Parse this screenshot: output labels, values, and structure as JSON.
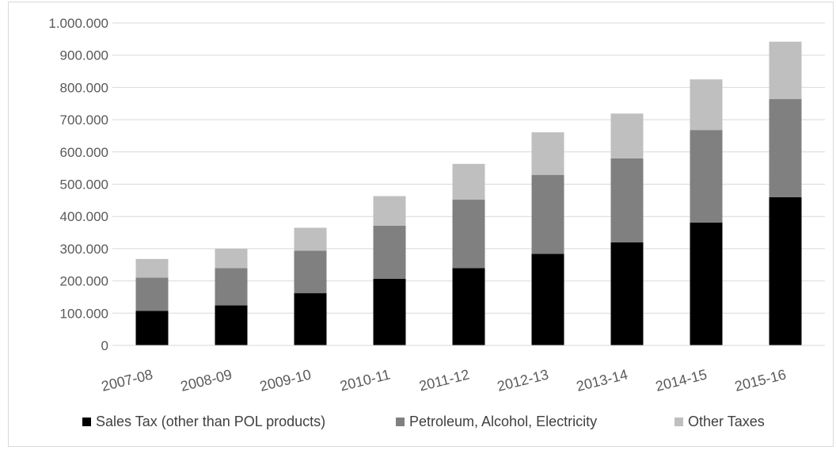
{
  "chart_data": {
    "type": "bar",
    "stacked": true,
    "categories": [
      "2007-08",
      "2008-09",
      "2009-10",
      "2010-11",
      "2011-12",
      "2012-13",
      "2013-14",
      "2014-15",
      "2015-16"
    ],
    "series": [
      {
        "name": "Sales Tax (other than POL products)",
        "color": "#000000",
        "values": [
          107000,
          124000,
          162000,
          207000,
          240000,
          284000,
          320000,
          381000,
          460000
        ]
      },
      {
        "name": "Petroleum, Alcohol, Electricity",
        "color": "#808080",
        "values": [
          103000,
          116000,
          132000,
          164000,
          212000,
          245000,
          260000,
          287000,
          304000
        ]
      },
      {
        "name": "Other Taxes",
        "color": "#bfbfbf",
        "values": [
          58000,
          60000,
          71000,
          92000,
          111000,
          132000,
          139000,
          157000,
          178000
        ]
      }
    ],
    "ylim": [
      0,
      1000000
    ],
    "yticks": [
      0,
      100000,
      200000,
      300000,
      400000,
      500000,
      600000,
      700000,
      800000,
      900000,
      1000000
    ],
    "ytick_labels": [
      "0",
      "100.000",
      "200.000",
      "300.000",
      "400.000",
      "500.000",
      "600.000",
      "700.000",
      "800.000",
      "900.000",
      "1.000.000"
    ],
    "grid": true,
    "legend": "bottom",
    "title": "",
    "xlabel": "",
    "ylabel": ""
  }
}
